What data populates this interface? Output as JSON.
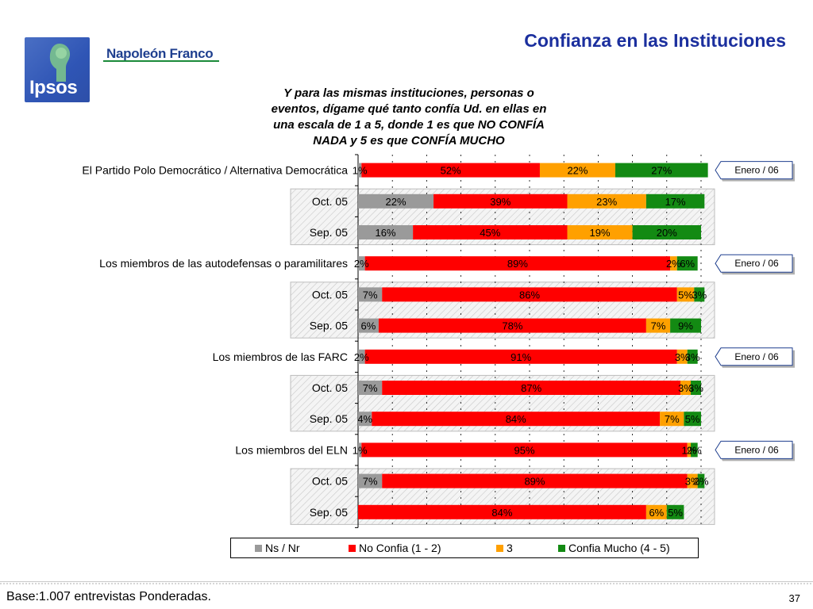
{
  "header": {
    "logo_text": "Ipsos",
    "brand_text": "Napoleón Franco",
    "title": "Confianza en las Instituciones",
    "question": "Y para las mismas instituciones, personas o eventos, dígame qué tanto confía Ud. en ellas en una escala de 1 a 5, donde 1 es que NO CONFÍA NADA y 5 es que CONFÍA MUCHO"
  },
  "colors": {
    "ns_nr": "#9a9a9a",
    "no_confia": "#ff0000",
    "three": "#ffa000",
    "confia_mucho": "#138a13",
    "title": "#1b2f9e",
    "hatch_bg": "#f2f2f2"
  },
  "chart_data": {
    "type": "bar",
    "orientation": "horizontal",
    "stacked": true,
    "percent_of_total": true,
    "xlim": [
      0,
      100
    ],
    "grid": true,
    "legend_position": "bottom",
    "series": [
      {
        "name": "Ns / Nr",
        "color": "#9a9a9a"
      },
      {
        "name": "No Confia (1 - 2)",
        "color": "#ff0000"
      },
      {
        "name": "3",
        "color": "#ffa000"
      },
      {
        "name": "Confia Mucho (4 - 5)",
        "color": "#138a13"
      }
    ],
    "rows": [
      {
        "label": "El Partido Polo Democrático / Alternativa Democrática",
        "main": true,
        "tag": "Enero / 06",
        "values": [
          1,
          52,
          22,
          27
        ],
        "labels": [
          "1%",
          "52%",
          "22%",
          "27%"
        ]
      },
      {
        "label": "Oct. 05",
        "main": false,
        "values": [
          22,
          39,
          23,
          17
        ],
        "labels": [
          "22%",
          "39%",
          "23%",
          "17%"
        ]
      },
      {
        "label": "Sep. 05",
        "main": false,
        "values": [
          16,
          45,
          19,
          20
        ],
        "labels": [
          "16%",
          "45%",
          "19%",
          "20%"
        ]
      },
      {
        "label": "Los miembros de las autodefensas o paramilitares",
        "main": true,
        "tag": "Enero / 06",
        "values": [
          2,
          89,
          2,
          6
        ],
        "labels": [
          "2%",
          "89%",
          "2%",
          "6%"
        ]
      },
      {
        "label": "Oct. 05",
        "main": false,
        "values": [
          7,
          86,
          5,
          3
        ],
        "labels": [
          "7%",
          "86%",
          "5%",
          "3%"
        ]
      },
      {
        "label": "Sep. 05",
        "main": false,
        "values": [
          6,
          78,
          7,
          9
        ],
        "labels": [
          "6%",
          "78%",
          "7%",
          "9%"
        ]
      },
      {
        "label": "Los miembros de las FARC",
        "main": true,
        "tag": "Enero / 06",
        "values": [
          2,
          91,
          3,
          3
        ],
        "labels": [
          "2%",
          "91%",
          "3%",
          "3%"
        ]
      },
      {
        "label": "Oct. 05",
        "main": false,
        "values": [
          7,
          87,
          3,
          3
        ],
        "labels": [
          "7%",
          "87%",
          "3%",
          "3%"
        ]
      },
      {
        "label": "Sep. 05",
        "main": false,
        "values": [
          4,
          84,
          7,
          5
        ],
        "labels": [
          "4%",
          "84%",
          "7%",
          "5%"
        ]
      },
      {
        "label": "Los miembros del ELN",
        "main": true,
        "tag": "Enero / 06",
        "values": [
          1,
          95,
          1,
          2
        ],
        "labels": [
          "1%",
          "95%",
          "1%",
          "2%"
        ]
      },
      {
        "label": "Oct. 05",
        "main": false,
        "values": [
          7,
          89,
          3,
          2
        ],
        "labels": [
          "7%",
          "89%",
          "3%",
          "2%"
        ]
      },
      {
        "label": "Sep. 05",
        "main": false,
        "values": [
          0,
          84,
          6,
          5
        ],
        "labels": [
          "",
          "84%",
          "6%",
          "5%"
        ]
      }
    ]
  },
  "legend": {
    "items": [
      "Ns / Nr",
      "No Confia (1 - 2)",
      "3",
      "Confia Mucho (4 - 5)"
    ]
  },
  "footer": {
    "base_note": "Base:1.007 entrevistas Ponderadas.",
    "page_number": "37"
  }
}
